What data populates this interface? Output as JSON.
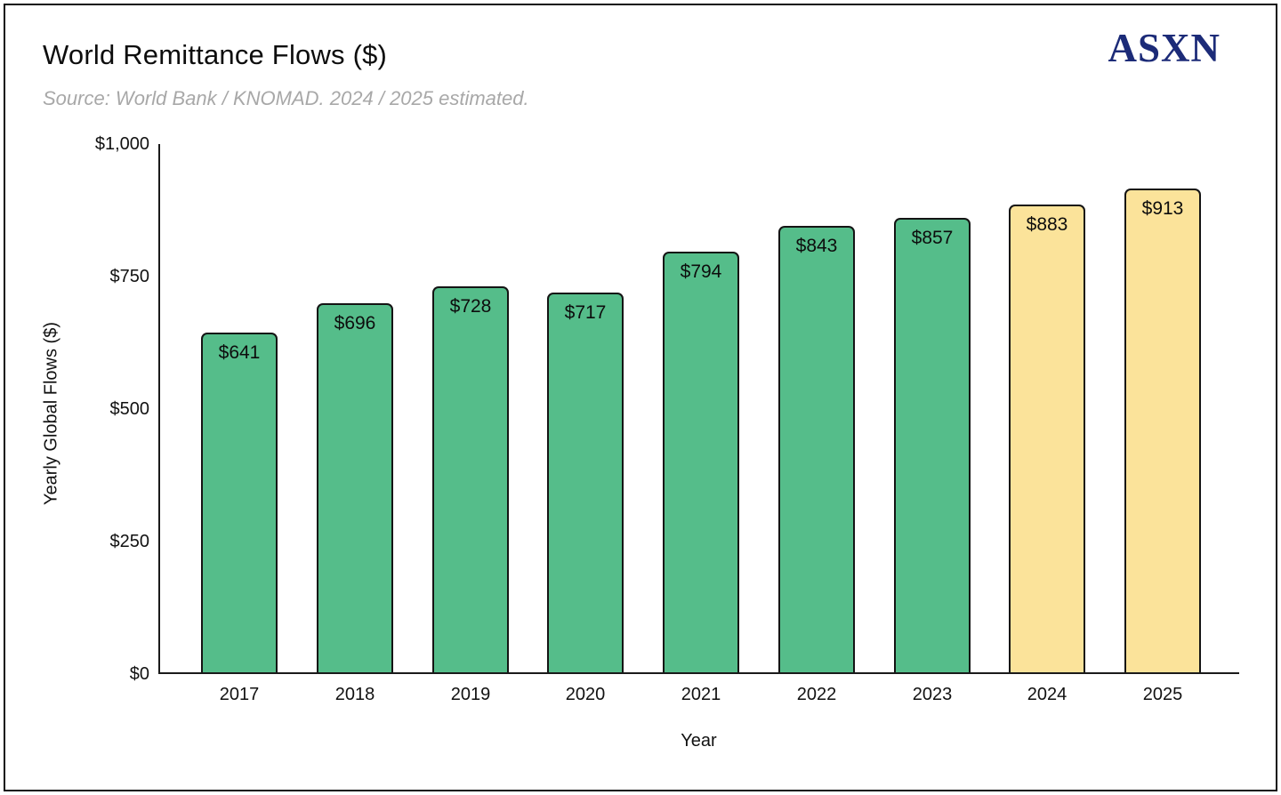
{
  "header": {
    "title": "World Remittance Flows ($)",
    "subtitle": "Source: World Bank / KNOMAD. 2024 / 2025 estimated.",
    "logo_text": "ASXN",
    "logo_color": "#1c2b78"
  },
  "chart_data": {
    "type": "bar",
    "title": "World Remittance Flows ($)",
    "xlabel": "Year",
    "ylabel": "Yearly Global Flows ($)",
    "categories": [
      "2017",
      "2018",
      "2019",
      "2020",
      "2021",
      "2022",
      "2023",
      "2024",
      "2025"
    ],
    "values": [
      641,
      696,
      728,
      717,
      794,
      843,
      857,
      883,
      913
    ],
    "value_labels": [
      "$641",
      "$696",
      "$728",
      "$717",
      "$794",
      "$843",
      "$857",
      "$883",
      "$913"
    ],
    "bar_styles": [
      "actual",
      "actual",
      "actual",
      "actual",
      "actual",
      "actual",
      "actual",
      "estimated",
      "estimated"
    ],
    "colors": {
      "actual": "#55bd8a",
      "estimated": "#fbe39a",
      "bar_border": "#141414"
    },
    "ylim": [
      0,
      1000
    ],
    "yticks": [
      {
        "value": 0,
        "label": "$0"
      },
      {
        "value": 250,
        "label": "$250"
      },
      {
        "value": 500,
        "label": "$500"
      },
      {
        "value": 750,
        "label": "$750"
      },
      {
        "value": 1000,
        "label": "$1,000"
      }
    ],
    "grid": false,
    "legend": "none"
  }
}
